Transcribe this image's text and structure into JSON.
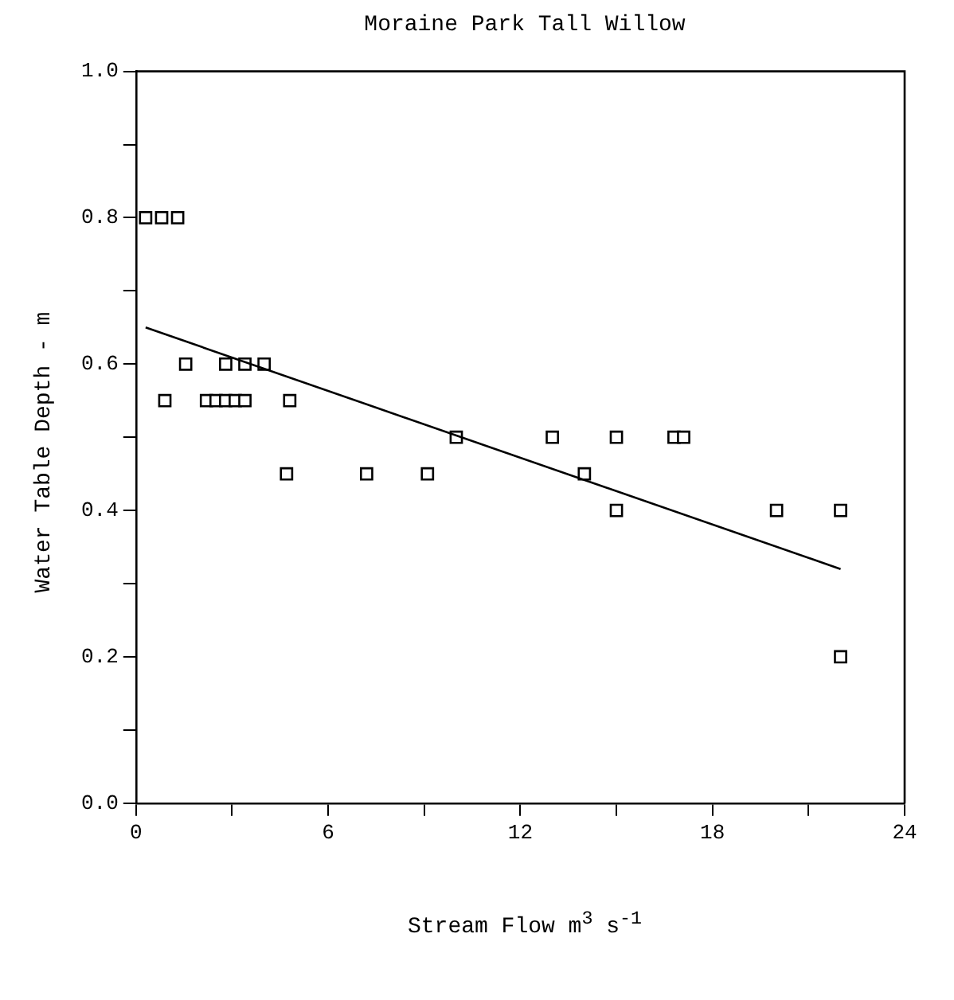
{
  "chart_data": {
    "type": "scatter",
    "title": "Moraine Park Tall Willow",
    "xlabel": "Stream Flow m$^{3}$ s$^{-1}$",
    "ylabel": "Water Table Depth - m",
    "marker": "square",
    "grid": false,
    "legend": false,
    "series": [
      {
        "color": "#000000",
        "x": [
          0.3,
          0.8,
          1.3,
          1.55,
          2.8,
          3.4,
          4.0,
          0.9,
          2.2,
          2.5,
          2.8,
          3.1,
          3.4,
          4.8,
          4.7,
          7.2,
          9.1,
          10.0,
          13.0,
          15.0,
          16.8,
          17.1,
          14.0,
          15.0,
          20.0,
          22.0,
          22.0
        ],
        "values": [
          0.8,
          0.8,
          0.8,
          0.6,
          0.6,
          0.6,
          0.6,
          0.55,
          0.55,
          0.55,
          0.55,
          0.55,
          0.55,
          0.55,
          0.45,
          0.45,
          0.45,
          0.5,
          0.5,
          0.5,
          0.5,
          0.5,
          0.45,
          0.4,
          0.4,
          0.4,
          0.2
        ]
      },
      {
        "type": "line",
        "color": "#000000",
        "marker": "none",
        "x": [
          0.3,
          22.0
        ],
        "values": [
          0.65,
          0.32
        ]
      }
    ],
    "xlim": [
      0,
      24
    ],
    "xticks": [
      0,
      6,
      12,
      18,
      24
    ],
    "ylim": [
      0,
      1
    ],
    "yticks": [
      {
        "value": 0,
        "label": "0.0"
      },
      {
        "value": 0.2,
        "label": "0.2"
      },
      {
        "value": 0.4,
        "label": "0.4"
      },
      {
        "value": 0.6,
        "label": "0.6"
      },
      {
        "value": 0.8,
        "label": "0.8"
      },
      {
        "value": 1,
        "label": "1.0"
      }
    ]
  }
}
